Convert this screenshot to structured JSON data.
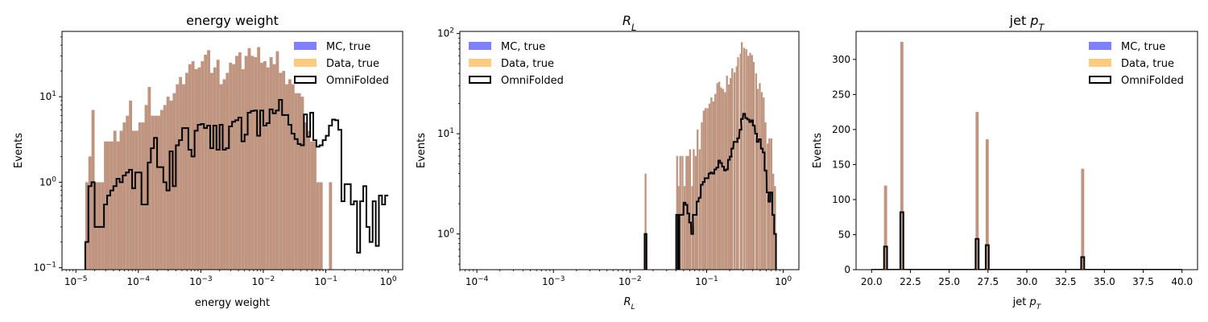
{
  "colors": {
    "mc_true": "#8080ff",
    "data_true": "#ffcc7f",
    "overlap": "#bf9580",
    "omnifolded": "#000000"
  },
  "chart_data": [
    {
      "type": "histogram",
      "title": "energy weight",
      "title_math": false,
      "xlabel": "energy weight",
      "xlabel_math": false,
      "ylabel": "Events",
      "xscale": "log",
      "yscale": "log",
      "xlim": [
        6e-06,
        1.7
      ],
      "ylim": [
        0.095,
        58
      ],
      "bin_range": [
        1e-05,
        1.0
      ],
      "xticks": [
        {
          "v": 1e-05,
          "exp": "-5"
        },
        {
          "v": 0.0001,
          "exp": "-4"
        },
        {
          "v": 0.001,
          "exp": "-3"
        },
        {
          "v": 0.01,
          "exp": "-2"
        },
        {
          "v": 0.1,
          "exp": "-1"
        },
        {
          "v": 1,
          "exp": "0"
        }
      ],
      "yticks": [
        {
          "v": 0.1,
          "exp": "-1"
        },
        {
          "v": 1,
          "exp": "0"
        },
        {
          "v": 10,
          "exp": "1"
        }
      ],
      "legend": {
        "placement": "top-right",
        "entries": [
          "MC, true",
          "Data, true",
          "OmniFolded"
        ]
      },
      "filled_values": [
        0,
        0,
        0,
        1,
        2,
        7,
        1,
        1,
        1,
        3,
        3,
        3,
        4,
        3,
        4,
        5,
        6,
        9,
        4,
        4,
        5,
        5,
        8,
        13,
        6,
        6,
        6,
        7,
        8,
        10,
        9,
        11,
        14,
        17,
        14,
        19,
        24,
        26,
        21,
        22,
        26,
        31,
        35,
        19,
        22,
        27,
        14,
        16,
        19,
        25,
        24,
        30,
        33,
        21,
        30,
        37,
        30,
        29,
        38,
        25,
        26,
        22,
        29,
        24,
        34,
        19,
        20,
        14,
        16,
        14,
        11,
        11,
        10,
        5,
        4,
        3,
        3,
        1,
        1,
        0,
        0,
        1,
        0,
        0,
        0,
        0,
        0,
        0,
        0,
        0,
        0,
        0,
        0,
        0,
        0,
        0,
        0,
        0,
        0,
        0
      ],
      "omnifolded_values": [
        0,
        0,
        0,
        0.2,
        0.9,
        1.0,
        0.3,
        0.3,
        0.3,
        0.55,
        0.7,
        0.8,
        0.9,
        1.1,
        1.0,
        1.2,
        1.3,
        1.4,
        0.85,
        1.3,
        1.3,
        0.55,
        0.55,
        1.7,
        2.5,
        3.3,
        1.5,
        1.5,
        1.0,
        0.8,
        2.3,
        0.9,
        2.7,
        3.1,
        4.3,
        4.3,
        2.4,
        2.0,
        4.0,
        4.7,
        4.8,
        4.3,
        4.6,
        2.5,
        4.6,
        2.4,
        4.7,
        2.4,
        2.5,
        4.5,
        5.1,
        5.3,
        5.7,
        3.0,
        3.6,
        6.5,
        6.8,
        6.9,
        3.5,
        6.9,
        4.6,
        4.9,
        7.1,
        6.4,
        6.9,
        9.2,
        6.1,
        6.1,
        4.7,
        3.7,
        3.2,
        2.8,
        2.7,
        6.2,
        3.4,
        6.5,
        3.1,
        2.6,
        2.7,
        3.1,
        3.5,
        4.6,
        5.4,
        5.3,
        4.1,
        0.6,
        0.95,
        0.95,
        0.55,
        0.6,
        0.15,
        0.6,
        0.9,
        0.3,
        0.2,
        0.6,
        0.18,
        0.7,
        0.55,
        0.7
      ]
    },
    {
      "type": "histogram",
      "title": "R",
      "title_sub": "L",
      "title_math": true,
      "xlabel": "R",
      "xlabel_sub": "L",
      "xlabel_math": true,
      "ylabel": "Events",
      "xscale": "log",
      "yscale": "log",
      "xlim": [
        6e-05,
        1.6
      ],
      "ylim": [
        0.44,
        105
      ],
      "bin_range": [
        0.001,
        0.8
      ],
      "xticks": [
        {
          "v": 0.0001,
          "exp": "-4"
        },
        {
          "v": 0.001,
          "exp": "-3"
        },
        {
          "v": 0.01,
          "exp": "-2"
        },
        {
          "v": 0.1,
          "exp": "-1"
        },
        {
          "v": 1,
          "exp": "0"
        }
      ],
      "yticks": [
        {
          "v": 1,
          "exp": "0"
        },
        {
          "v": 10,
          "exp": "1"
        },
        {
          "v": 100,
          "exp": "2"
        }
      ],
      "legend": {
        "placement": "top-left",
        "entries": [
          "MC, true",
          "Data, true",
          "OmniFolded"
        ]
      },
      "filled_values": [
        4,
        0,
        0,
        0,
        0,
        0,
        0,
        0,
        0,
        0,
        0,
        0,
        0,
        0,
        0,
        0,
        0,
        0,
        0,
        0,
        0,
        0,
        0,
        0,
        0,
        0,
        0,
        0,
        0,
        0,
        0,
        0,
        0,
        0,
        0,
        0,
        0,
        0,
        0,
        0,
        0,
        0,
        0,
        0,
        0,
        0,
        0,
        0,
        0,
        0,
        0,
        0,
        0,
        0,
        0,
        0,
        0,
        0,
        0,
        0,
        0,
        0,
        0,
        0,
        0,
        0,
        0,
        0,
        0,
        0,
        0,
        0,
        0,
        0,
        0,
        0,
        0,
        0,
        0,
        0,
        0,
        0,
        0,
        0,
        0,
        0,
        0,
        0,
        0,
        0,
        0,
        0,
        0,
        0,
        0,
        0,
        0,
        0,
        0,
        0
      ],
      "filled_hist": [
        {
          "x": 0.0155,
          "v": 4
        },
        {
          "x": 0.04,
          "v": 6
        },
        {
          "x": 0.042,
          "v": 3
        },
        {
          "x": 0.044,
          "v": 6
        },
        {
          "x": 0.047,
          "v": 6
        },
        {
          "x": 0.05,
          "v": 3
        },
        {
          "x": 0.053,
          "v": 6
        },
        {
          "x": 0.056,
          "v": 6
        },
        {
          "x": 0.059,
          "v": 7
        },
        {
          "x": 0.063,
          "v": 3
        },
        {
          "x": 0.066,
          "v": 7
        },
        {
          "x": 0.07,
          "v": 6
        },
        {
          "x": 0.074,
          "v": 11
        },
        {
          "x": 0.079,
          "v": 7
        },
        {
          "x": 0.084,
          "v": 13
        },
        {
          "x": 0.089,
          "v": 17
        },
        {
          "x": 0.094,
          "v": 18
        },
        {
          "x": 0.1,
          "v": 18
        },
        {
          "x": 0.106,
          "v": 20
        },
        {
          "x": 0.112,
          "v": 23
        },
        {
          "x": 0.119,
          "v": 21
        },
        {
          "x": 0.126,
          "v": 25
        },
        {
          "x": 0.134,
          "v": 32
        },
        {
          "x": 0.142,
          "v": 33
        },
        {
          "x": 0.15,
          "v": 29
        },
        {
          "x": 0.159,
          "v": 28
        },
        {
          "x": 0.169,
          "v": 26
        },
        {
          "x": 0.179,
          "v": 38
        },
        {
          "x": 0.19,
          "v": 31
        },
        {
          "x": 0.2,
          "v": 36
        },
        {
          "x": 0.21,
          "v": 45
        },
        {
          "x": 0.225,
          "v": 41
        },
        {
          "x": 0.24,
          "v": 47
        },
        {
          "x": 0.25,
          "v": 58
        },
        {
          "x": 0.27,
          "v": 63
        },
        {
          "x": 0.28,
          "v": 82
        },
        {
          "x": 0.3,
          "v": 72
        },
        {
          "x": 0.32,
          "v": 70
        },
        {
          "x": 0.34,
          "v": 60
        },
        {
          "x": 0.36,
          "v": 64
        },
        {
          "x": 0.38,
          "v": 61
        },
        {
          "x": 0.4,
          "v": 52
        },
        {
          "x": 0.43,
          "v": 40
        },
        {
          "x": 0.45,
          "v": 28
        },
        {
          "x": 0.48,
          "v": 32
        },
        {
          "x": 0.51,
          "v": 26
        },
        {
          "x": 0.54,
          "v": 23
        },
        {
          "x": 0.57,
          "v": 13
        },
        {
          "x": 0.61,
          "v": 8
        },
        {
          "x": 0.64,
          "v": 9
        },
        {
          "x": 0.68,
          "v": 9
        },
        {
          "x": 0.72,
          "v": 4
        },
        {
          "x": 0.76,
          "v": 3
        }
      ],
      "omnifolded_hist": [
        {
          "x": 0.0155,
          "v": 1.0
        },
        {
          "x": 0.04,
          "v": 1.55
        },
        {
          "x": 0.044,
          "v": 1.55
        },
        {
          "x": 0.047,
          "v": 1.55
        },
        {
          "x": 0.05,
          "v": 2.05
        },
        {
          "x": 0.053,
          "v": 1.95
        },
        {
          "x": 0.056,
          "v": 1.6
        },
        {
          "x": 0.059,
          "v": 1.3
        },
        {
          "x": 0.063,
          "v": 1.0
        },
        {
          "x": 0.066,
          "v": 1.55
        },
        {
          "x": 0.07,
          "v": 1.55
        },
        {
          "x": 0.074,
          "v": 2.1
        },
        {
          "x": 0.079,
          "v": 2.3
        },
        {
          "x": 0.084,
          "v": 3.1
        },
        {
          "x": 0.089,
          "v": 3.3
        },
        {
          "x": 0.094,
          "v": 3.6
        },
        {
          "x": 0.1,
          "v": 3.6
        },
        {
          "x": 0.106,
          "v": 4.0
        },
        {
          "x": 0.112,
          "v": 4.1
        },
        {
          "x": 0.119,
          "v": 4.0
        },
        {
          "x": 0.126,
          "v": 4.4
        },
        {
          "x": 0.134,
          "v": 4.6
        },
        {
          "x": 0.142,
          "v": 5.4
        },
        {
          "x": 0.15,
          "v": 5.1
        },
        {
          "x": 0.159,
          "v": 4.7
        },
        {
          "x": 0.169,
          "v": 4.3
        },
        {
          "x": 0.179,
          "v": 4.4
        },
        {
          "x": 0.19,
          "v": 5.5
        },
        {
          "x": 0.2,
          "v": 5.9
        },
        {
          "x": 0.21,
          "v": 7.1
        },
        {
          "x": 0.225,
          "v": 8.3
        },
        {
          "x": 0.24,
          "v": 8.3
        },
        {
          "x": 0.25,
          "v": 9.0
        },
        {
          "x": 0.27,
          "v": 11.0
        },
        {
          "x": 0.28,
          "v": 14.0
        },
        {
          "x": 0.3,
          "v": 15.8
        },
        {
          "x": 0.32,
          "v": 14.3
        },
        {
          "x": 0.34,
          "v": 13.9
        },
        {
          "x": 0.36,
          "v": 13.1
        },
        {
          "x": 0.38,
          "v": 13.6
        },
        {
          "x": 0.4,
          "v": 12.1
        },
        {
          "x": 0.43,
          "v": 10.0
        },
        {
          "x": 0.45,
          "v": 8.3
        },
        {
          "x": 0.48,
          "v": 8.8
        },
        {
          "x": 0.51,
          "v": 7.1
        },
        {
          "x": 0.54,
          "v": 6.5
        },
        {
          "x": 0.57,
          "v": 4.3
        },
        {
          "x": 0.61,
          "v": 2.6
        },
        {
          "x": 0.64,
          "v": 2.1
        },
        {
          "x": 0.68,
          "v": 2.6
        },
        {
          "x": 0.72,
          "v": 1.55
        },
        {
          "x": 0.76,
          "v": 1.0
        }
      ]
    },
    {
      "type": "histogram",
      "title": "jet p",
      "title_sub": "T",
      "title_math": true,
      "xlabel": "jet p",
      "xlabel_sub": "T",
      "xlabel_math": true,
      "ylabel": "Events",
      "xscale": "linear",
      "yscale": "linear",
      "xlim": [
        19.0,
        41.0
      ],
      "ylim": [
        0,
        340
      ],
      "bin_range": [
        20,
        40
      ],
      "bins": 100,
      "xticks": [
        {
          "v": 20.0,
          "label": "20.0"
        },
        {
          "v": 22.5,
          "label": "22.5"
        },
        {
          "v": 25.0,
          "label": "25.0"
        },
        {
          "v": 27.5,
          "label": "27.5"
        },
        {
          "v": 30.0,
          "label": "30.0"
        },
        {
          "v": 32.5,
          "label": "32.5"
        },
        {
          "v": 35.0,
          "label": "35.0"
        },
        {
          "v": 37.5,
          "label": "37.5"
        },
        {
          "v": 40.0,
          "label": "40.0"
        }
      ],
      "yticks": [
        {
          "v": 0,
          "label": "0"
        },
        {
          "v": 50,
          "label": "50"
        },
        {
          "v": 100,
          "label": "100"
        },
        {
          "v": 150,
          "label": "150"
        },
        {
          "v": 200,
          "label": "200"
        },
        {
          "v": 250,
          "label": "250"
        },
        {
          "v": 300,
          "label": "300"
        }
      ],
      "legend": {
        "placement": "top-right",
        "entries": [
          "MC, true",
          "Data, true",
          "OmniFolded"
        ]
      },
      "filled_bins": [
        {
          "x": 20.9,
          "v": 120
        },
        {
          "x": 21.95,
          "v": 325
        },
        {
          "x": 26.8,
          "v": 225
        },
        {
          "x": 27.45,
          "v": 186
        },
        {
          "x": 33.6,
          "v": 144
        }
      ],
      "omnifolded_bins": [
        {
          "x": 20.9,
          "v": 33
        },
        {
          "x": 21.95,
          "v": 82
        },
        {
          "x": 26.8,
          "v": 44
        },
        {
          "x": 27.45,
          "v": 35
        },
        {
          "x": 33.6,
          "v": 18
        }
      ]
    }
  ]
}
